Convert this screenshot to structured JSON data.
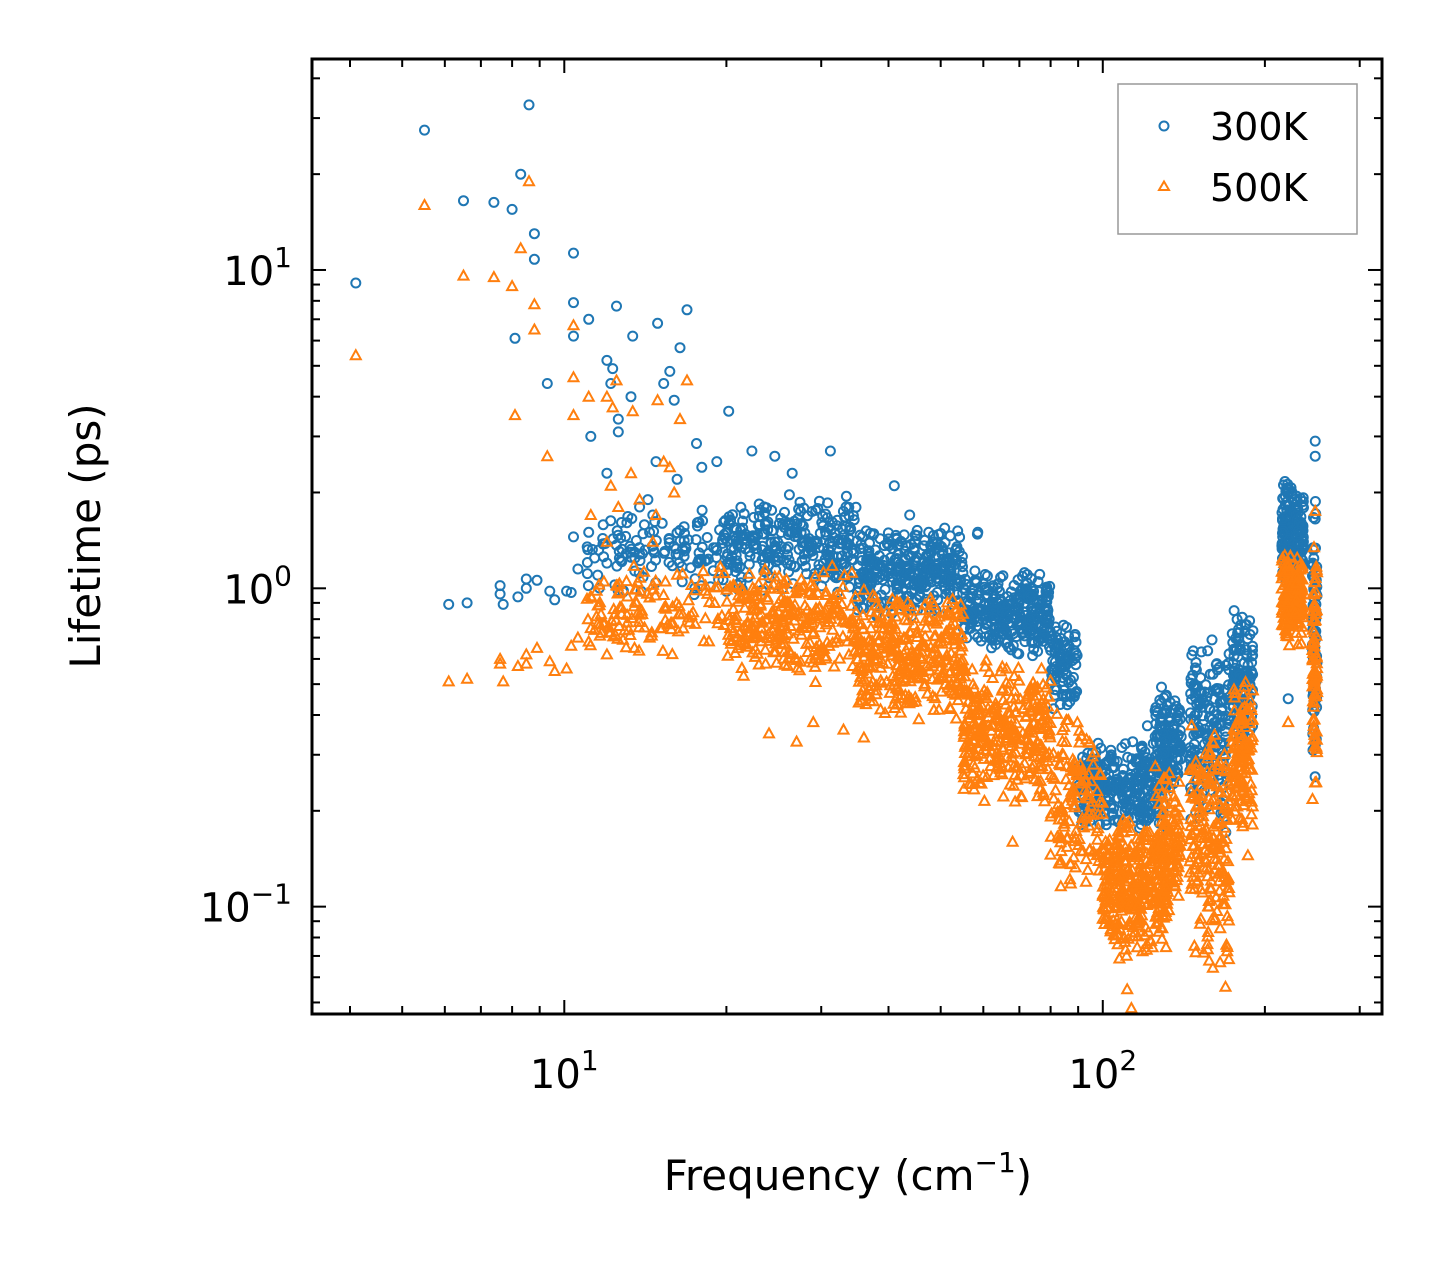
{
  "chart_data": {
    "type": "scatter",
    "title": "",
    "xlabel": "Frequency (cm",
    "xlabel_sup": "−1",
    "xlabel_end": ")",
    "ylabel": "Lifetime (ps)",
    "xscale": "log",
    "yscale": "log",
    "xlim": [
      3.4,
      330
    ],
    "ylim": [
      0.046,
      46
    ],
    "x_ticks": [
      {
        "value": 10,
        "base": "10",
        "exp": "1"
      },
      {
        "value": 100,
        "base": "10",
        "exp": "2"
      }
    ],
    "y_ticks": [
      {
        "value": 0.1,
        "base": "10",
        "exp": "−1"
      },
      {
        "value": 1,
        "base": "10",
        "exp": "0"
      },
      {
        "value": 10,
        "base": "10",
        "exp": "1"
      }
    ],
    "legend_position": "top-right",
    "series": [
      {
        "name": "300K",
        "color": "#1f77b4",
        "marker": "circle",
        "points": [
          [
            4.1,
            9.1
          ],
          [
            5.5,
            27.5
          ],
          [
            6.5,
            16.5
          ],
          [
            7.4,
            16.3
          ],
          [
            8.0,
            15.5
          ],
          [
            8.6,
            33
          ],
          [
            8.3,
            20
          ],
          [
            8.8,
            13
          ],
          [
            8.8,
            10.8
          ],
          [
            10.4,
            11.3
          ],
          [
            10.4,
            7.9
          ],
          [
            10.4,
            6.2
          ],
          [
            8.1,
            6.1
          ],
          [
            9.3,
            4.4
          ],
          [
            11.1,
            7.0
          ],
          [
            12.5,
            7.7
          ],
          [
            13.4,
            6.2
          ],
          [
            14.9,
            6.8
          ],
          [
            16.9,
            7.5
          ],
          [
            16.4,
            5.7
          ],
          [
            12.0,
            5.2
          ],
          [
            12.3,
            4.9
          ],
          [
            15.7,
            4.8
          ],
          [
            15.3,
            4.4
          ],
          [
            12.2,
            4.4
          ],
          [
            13.3,
            4.0
          ],
          [
            16.0,
            3.9
          ],
          [
            20.2,
            3.6
          ],
          [
            11.2,
            3.0
          ],
          [
            12.6,
            3.1
          ],
          [
            12.6,
            3.4
          ],
          [
            14.8,
            2.5
          ],
          [
            12.0,
            2.3
          ],
          [
            16.2,
            2.2
          ],
          [
            18.0,
            2.4
          ],
          [
            17.6,
            2.85
          ],
          [
            19.2,
            2.5
          ],
          [
            14.3,
            1.9
          ],
          [
            13.8,
            1.8
          ],
          [
            14.6,
            1.7
          ],
          [
            22.3,
            2.7
          ],
          [
            24.6,
            2.6
          ],
          [
            31.2,
            2.7
          ],
          [
            26.5,
            2.3
          ],
          [
            41.0,
            2.1
          ],
          [
            43.8,
            1.7
          ],
          [
            47.5,
            1.5
          ],
          [
            53.6,
            1.35
          ],
          [
            58.6,
            1.5
          ],
          [
            58.5,
            1.48
          ],
          [
            10.3,
            0.97
          ],
          [
            10.1,
            0.98
          ],
          [
            9.4,
            0.98
          ],
          [
            9.6,
            0.92
          ],
          [
            8.9,
            1.06
          ],
          [
            8.5,
            1.07
          ],
          [
            8.5,
            1.0
          ],
          [
            8.2,
            0.94
          ],
          [
            7.7,
            0.89
          ],
          [
            7.6,
            0.96
          ],
          [
            7.6,
            1.02
          ],
          [
            6.1,
            0.89
          ],
          [
            6.6,
            0.9
          ],
          [
            10.6,
            1.15
          ],
          [
            10.4,
            1.45
          ],
          [
            11.1,
            1.5
          ],
          [
            12.0,
            1.2
          ],
          [
            13.5,
            1.3
          ],
          [
            14.4,
            1.5
          ],
          [
            15.2,
            1.6
          ],
          [
            121,
            0.37
          ],
          [
            221,
            0.45
          ],
          [
            248,
            2.9
          ],
          [
            248,
            2.6
          ]
        ],
        "clusters": [
          {
            "x": [
              11.0,
              20.0
            ],
            "y": [
              0.9,
              1.9
            ],
            "n": 130
          },
          {
            "x": [
              20.0,
              35.0
            ],
            "y": [
              0.95,
              2.0
            ],
            "n": 280
          },
          {
            "x": [
              35.0,
              55.0
            ],
            "y": [
              0.8,
              1.6
            ],
            "n": 320
          },
          {
            "x": [
              55.0,
              80.0
            ],
            "y": [
              0.6,
              1.15
            ],
            "n": 300
          },
          {
            "x": [
              80.0,
              90.0
            ],
            "y": [
              0.4,
              0.8
            ],
            "n": 90
          },
          {
            "x": [
              90.0,
              132.0
            ],
            "y": [
              0.17,
              0.34
            ],
            "n": 320
          },
          {
            "x": [
              125.0,
              140.0
            ],
            "y": [
              0.22,
              0.52
            ],
            "n": 120
          },
          {
            "x": [
              145.0,
              172.0
            ],
            "y": [
              0.16,
              0.75
            ],
            "n": 180
          },
          {
            "x": [
              174.0,
              190.0
            ],
            "y": [
              0.3,
              0.9
            ],
            "n": 130
          },
          {
            "x": [
              215.0,
              225.0
            ],
            "y": [
              1.0,
              2.2
            ],
            "n": 110
          },
          {
            "x": [
              228.0,
              236.0
            ],
            "y": [
              1.1,
              2.1
            ],
            "n": 70
          },
          {
            "x": [
              245.0,
              250.0
            ],
            "y": [
              0.25,
              2.0
            ],
            "n": 80
          }
        ]
      },
      {
        "name": "500K",
        "color": "#ff7f0e",
        "marker": "triangle",
        "points": [
          [
            4.1,
            5.4
          ],
          [
            5.5,
            16.0
          ],
          [
            6.5,
            9.6
          ],
          [
            7.4,
            9.5
          ],
          [
            8.0,
            8.9
          ],
          [
            8.3,
            11.7
          ],
          [
            8.6,
            19
          ],
          [
            8.8,
            7.8
          ],
          [
            8.8,
            6.5
          ],
          [
            10.4,
            6.7
          ],
          [
            10.4,
            4.6
          ],
          [
            10.4,
            3.5
          ],
          [
            8.1,
            3.5
          ],
          [
            9.3,
            2.6
          ],
          [
            11.1,
            4.0
          ],
          [
            12.5,
            4.5
          ],
          [
            13.4,
            3.6
          ],
          [
            14.9,
            3.9
          ],
          [
            16.9,
            4.5
          ],
          [
            16.4,
            3.4
          ],
          [
            12.0,
            4.0
          ],
          [
            12.3,
            3.7
          ],
          [
            15.7,
            2.4
          ],
          [
            15.3,
            2.5
          ],
          [
            12.2,
            2.1
          ],
          [
            13.3,
            2.3
          ],
          [
            16.0,
            2.0
          ],
          [
            11.2,
            1.7
          ],
          [
            12.6,
            1.8
          ],
          [
            12.0,
            1.4
          ],
          [
            14.8,
            1.7
          ],
          [
            13.8,
            1.9
          ],
          [
            14.6,
            1.4
          ],
          [
            6.1,
            0.51
          ],
          [
            6.6,
            0.52
          ],
          [
            7.7,
            0.51
          ],
          [
            7.6,
            0.58
          ],
          [
            7.6,
            0.6
          ],
          [
            8.2,
            0.57
          ],
          [
            8.5,
            0.62
          ],
          [
            8.5,
            0.58
          ],
          [
            8.9,
            0.65
          ],
          [
            9.4,
            0.59
          ],
          [
            9.6,
            0.55
          ],
          [
            10.1,
            0.56
          ],
          [
            10.3,
            0.66
          ],
          [
            10.6,
            0.7
          ],
          [
            11.1,
            0.68
          ],
          [
            12.0,
            0.62
          ],
          [
            13.5,
            0.65
          ],
          [
            14.4,
            0.7
          ],
          [
            15.2,
            0.75
          ],
          [
            24.0,
            0.35
          ],
          [
            27.0,
            0.33
          ],
          [
            33.0,
            0.36
          ],
          [
            29.0,
            0.38
          ],
          [
            36.0,
            0.34
          ],
          [
            58.0,
            0.3
          ],
          [
            68.0,
            0.16
          ],
          [
            113,
            0.048
          ],
          [
            111,
            0.055
          ],
          [
            169,
            0.056
          ],
          [
            186,
            0.145
          ],
          [
            221,
            0.38
          ],
          [
            248,
            1.75
          ]
        ],
        "clusters": [
          {
            "x": [
              11.0,
              20.0
            ],
            "y": [
              0.6,
              1.25
            ],
            "n": 130
          },
          {
            "x": [
              20.0,
              35.0
            ],
            "y": [
              0.5,
              1.2
            ],
            "n": 300
          },
          {
            "x": [
              35.0,
              55.0
            ],
            "y": [
              0.38,
              1.0
            ],
            "n": 340
          },
          {
            "x": [
              55.0,
              80.0
            ],
            "y": [
              0.2,
              0.62
            ],
            "n": 320
          },
          {
            "x": [
              80.0,
              100.0
            ],
            "y": [
              0.1,
              0.45
            ],
            "n": 140
          },
          {
            "x": [
              100.0,
              132.0
            ],
            "y": [
              0.065,
              0.2
            ],
            "n": 340
          },
          {
            "x": [
              125.0,
              140.0
            ],
            "y": [
              0.09,
              0.3
            ],
            "n": 120
          },
          {
            "x": [
              145.0,
              172.0
            ],
            "y": [
              0.06,
              0.43
            ],
            "n": 200
          },
          {
            "x": [
              174.0,
              190.0
            ],
            "y": [
              0.17,
              0.52
            ],
            "n": 130
          },
          {
            "x": [
              215.0,
              225.0
            ],
            "y": [
              0.65,
              1.35
            ],
            "n": 110
          },
          {
            "x": [
              228.0,
              236.0
            ],
            "y": [
              0.65,
              1.3
            ],
            "n": 70
          },
          {
            "x": [
              245.0,
              250.0
            ],
            "y": [
              0.2,
              1.5
            ],
            "n": 80
          }
        ]
      }
    ]
  }
}
